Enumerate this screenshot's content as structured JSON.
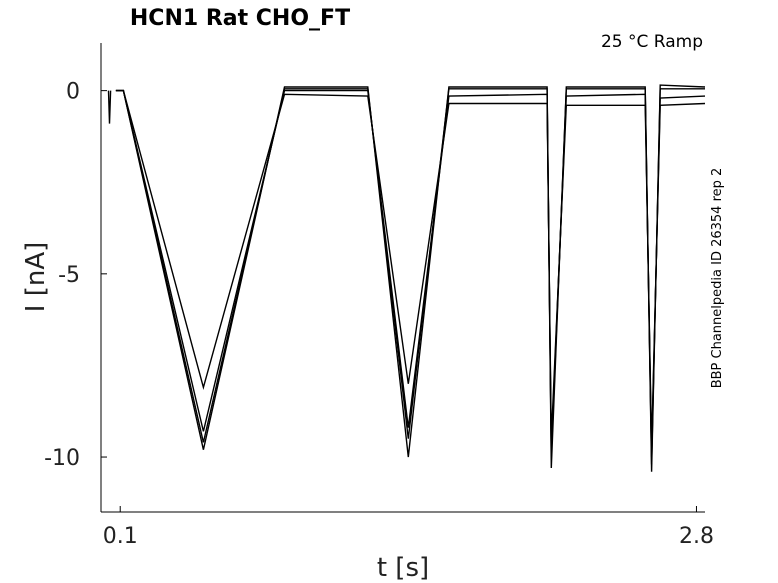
{
  "chart_data": {
    "type": "line",
    "title": "HCN1  Rat  CHO_FT",
    "annotation": "25 °C  Ramp",
    "side_label": "BBP Channelpedia ID 26354 rep 2",
    "xlabel": "t [s]",
    "ylabel": "I [nA]",
    "x_ticks": [
      {
        "value": 0.1,
        "label": "0.1"
      },
      {
        "value": 2.8,
        "label": "2.8"
      }
    ],
    "y_ticks": [
      {
        "value": 0,
        "label": "0"
      },
      {
        "value": -5,
        "label": "-5"
      },
      {
        "value": -10,
        "label": "-10"
      }
    ],
    "xlim": [
      0.01,
      2.84
    ],
    "ylim": [
      -11.5,
      1.3
    ],
    "grid": false,
    "series": [
      {
        "x": [
          0.08,
          0.1,
          0.115,
          0.49,
          0.87,
          1.26,
          1.45,
          1.64,
          2.1,
          2.12,
          2.19,
          2.56,
          2.59,
          2.63,
          2.84
        ],
        "y": [
          0,
          0,
          0,
          -9.8,
          0.1,
          0.1,
          -10.0,
          0.1,
          0.1,
          -10.3,
          0.1,
          0.1,
          -10.4,
          0.15,
          0.1
        ]
      },
      {
        "x": [
          0.08,
          0.1,
          0.115,
          0.49,
          0.87,
          1.26,
          1.45,
          1.64,
          2.1,
          2.12,
          2.19,
          2.56,
          2.59,
          2.63,
          2.84
        ],
        "y": [
          0,
          0,
          0,
          -9.6,
          0.05,
          0.05,
          -9.5,
          0.05,
          0.05,
          -10.0,
          0.05,
          0.05,
          -10.2,
          0.05,
          0.05
        ]
      },
      {
        "x": [
          0.08,
          0.1,
          0.115,
          0.49,
          0.87,
          1.26,
          1.45,
          1.64,
          2.1,
          2.12,
          2.19,
          2.56,
          2.59,
          2.63,
          2.84
        ],
        "y": [
          0,
          0,
          0,
          -9.3,
          0.0,
          0.0,
          -9.2,
          -0.15,
          -0.1,
          -9.8,
          -0.15,
          -0.1,
          -10.0,
          -0.2,
          -0.15
        ]
      },
      {
        "x": [
          0.08,
          0.1,
          0.115,
          0.49,
          0.87,
          1.26,
          1.45,
          1.64,
          2.1,
          2.12,
          2.19,
          2.56,
          2.59,
          2.63,
          2.84
        ],
        "y": [
          0,
          0,
          0,
          -8.1,
          -0.1,
          -0.15,
          -8.0,
          -0.35,
          -0.35,
          -9.5,
          -0.4,
          -0.4,
          -9.7,
          -0.4,
          -0.35
        ]
      }
    ],
    "artifact": {
      "x": [
        0.045,
        0.05,
        0.055
      ],
      "y": [
        0,
        -0.9,
        0
      ]
    }
  }
}
